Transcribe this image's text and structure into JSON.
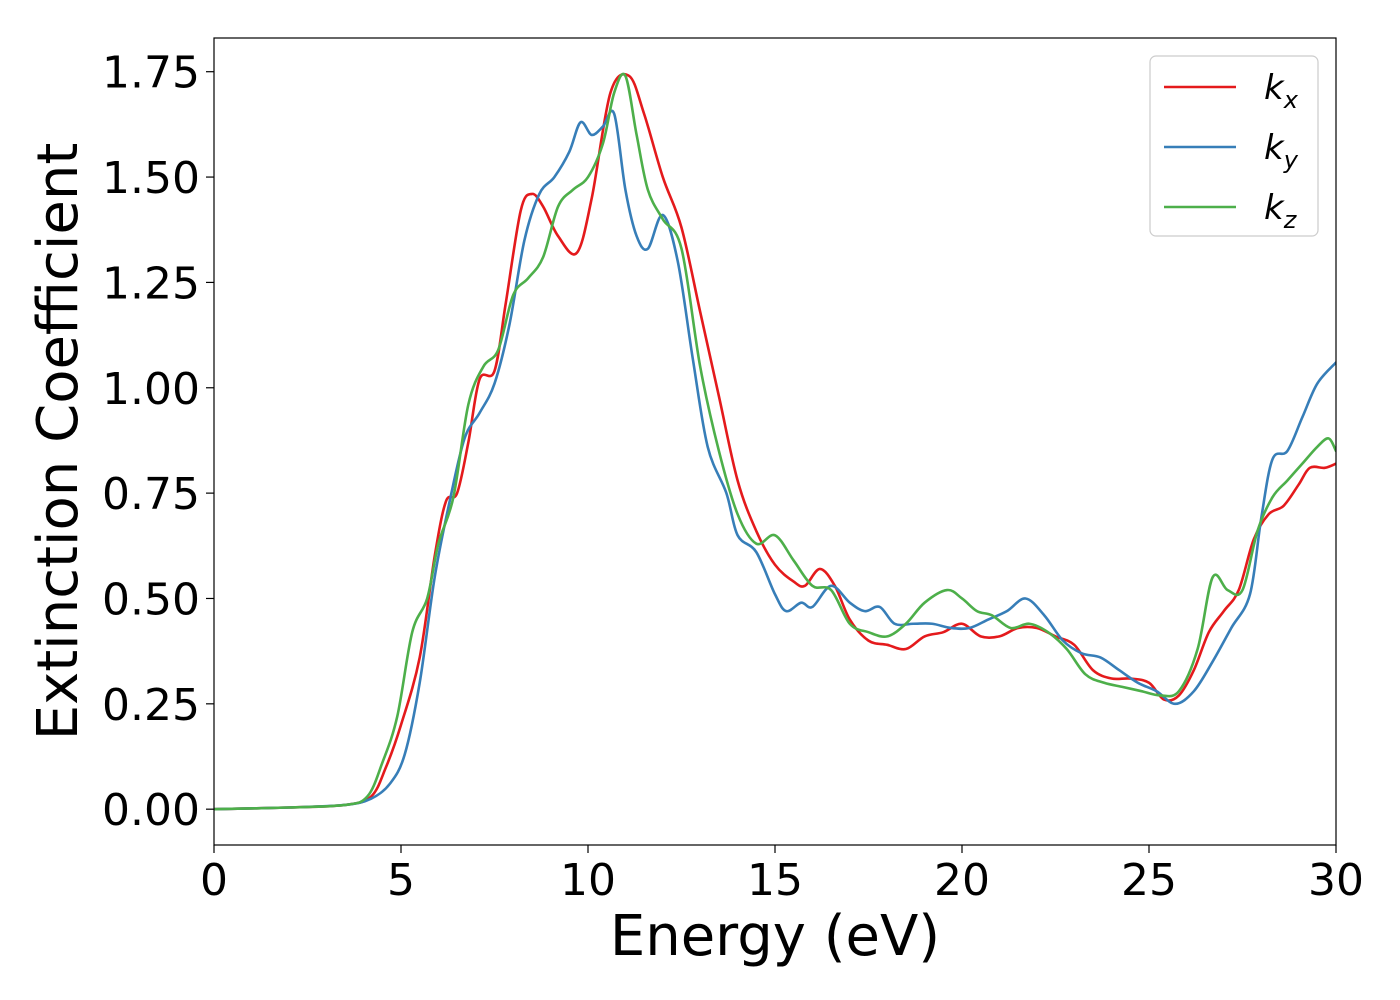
{
  "chart_data": {
    "type": "line",
    "xlabel": "Energy (eV)",
    "ylabel": "Extinction Coefficient",
    "xlim": [
      0,
      30
    ],
    "ylim": [
      -0.085,
      1.83
    ],
    "xticks": [
      0,
      5,
      10,
      15,
      20,
      25,
      30
    ],
    "xtick_labels": [
      "0",
      "5",
      "10",
      "15",
      "20",
      "25",
      "30"
    ],
    "yticks": [
      0.0,
      0.25,
      0.5,
      0.75,
      1.0,
      1.25,
      1.5,
      1.75
    ],
    "ytick_labels": [
      "0.00",
      "0.25",
      "0.50",
      "0.75",
      "1.00",
      "1.25",
      "1.50",
      "1.75"
    ],
    "grid": false,
    "legend_position": "top-right",
    "series": [
      {
        "name": "k_x",
        "label_base": "k",
        "label_sub": "x",
        "color": "#e41a1c",
        "points": [
          [
            0,
            0
          ],
          [
            2,
            0.004
          ],
          [
            3.5,
            0.01
          ],
          [
            4.2,
            0.03
          ],
          [
            4.6,
            0.1
          ],
          [
            5,
            0.2
          ],
          [
            5.5,
            0.36
          ],
          [
            5.9,
            0.6
          ],
          [
            6.2,
            0.73
          ],
          [
            6.5,
            0.75
          ],
          [
            6.8,
            0.87
          ],
          [
            7.1,
            1.02
          ],
          [
            7.5,
            1.04
          ],
          [
            7.8,
            1.2
          ],
          [
            8.2,
            1.42
          ],
          [
            8.5,
            1.46
          ],
          [
            8.8,
            1.43
          ],
          [
            9.2,
            1.36
          ],
          [
            9.7,
            1.32
          ],
          [
            10.1,
            1.45
          ],
          [
            10.6,
            1.7
          ],
          [
            11.1,
            1.74
          ],
          [
            11.5,
            1.65
          ],
          [
            12,
            1.5
          ],
          [
            12.5,
            1.38
          ],
          [
            13,
            1.18
          ],
          [
            13.5,
            0.98
          ],
          [
            14,
            0.78
          ],
          [
            14.5,
            0.66
          ],
          [
            15,
            0.58
          ],
          [
            15.5,
            0.54
          ],
          [
            15.8,
            0.53
          ],
          [
            16.2,
            0.57
          ],
          [
            16.6,
            0.53
          ],
          [
            17,
            0.45
          ],
          [
            17.5,
            0.4
          ],
          [
            18,
            0.39
          ],
          [
            18.5,
            0.38
          ],
          [
            19,
            0.41
          ],
          [
            19.5,
            0.42
          ],
          [
            20,
            0.44
          ],
          [
            20.5,
            0.41
          ],
          [
            21,
            0.41
          ],
          [
            21.5,
            0.43
          ],
          [
            22,
            0.43
          ],
          [
            22.5,
            0.41
          ],
          [
            23,
            0.39
          ],
          [
            23.5,
            0.33
          ],
          [
            24,
            0.31
          ],
          [
            24.5,
            0.31
          ],
          [
            25,
            0.3
          ],
          [
            25.4,
            0.26
          ],
          [
            25.8,
            0.27
          ],
          [
            26.2,
            0.33
          ],
          [
            26.6,
            0.42
          ],
          [
            27,
            0.47
          ],
          [
            27.4,
            0.52
          ],
          [
            27.8,
            0.64
          ],
          [
            28.2,
            0.7
          ],
          [
            28.6,
            0.72
          ],
          [
            29,
            0.77
          ],
          [
            29.3,
            0.81
          ],
          [
            29.7,
            0.81
          ],
          [
            30,
            0.82
          ]
        ]
      },
      {
        "name": "k_y",
        "label_base": "k",
        "label_sub": "y",
        "color": "#377eb8",
        "points": [
          [
            0,
            0
          ],
          [
            2,
            0.004
          ],
          [
            3.5,
            0.01
          ],
          [
            4.2,
            0.025
          ],
          [
            4.7,
            0.06
          ],
          [
            5.1,
            0.13
          ],
          [
            5.5,
            0.3
          ],
          [
            5.9,
            0.55
          ],
          [
            6.3,
            0.73
          ],
          [
            6.7,
            0.88
          ],
          [
            7.1,
            0.94
          ],
          [
            7.5,
            1.01
          ],
          [
            7.9,
            1.15
          ],
          [
            8.3,
            1.35
          ],
          [
            8.7,
            1.46
          ],
          [
            9.1,
            1.5
          ],
          [
            9.5,
            1.56
          ],
          [
            9.8,
            1.63
          ],
          [
            10.1,
            1.6
          ],
          [
            10.4,
            1.62
          ],
          [
            10.7,
            1.65
          ],
          [
            11,
            1.47
          ],
          [
            11.3,
            1.36
          ],
          [
            11.6,
            1.33
          ],
          [
            12,
            1.41
          ],
          [
            12.4,
            1.3
          ],
          [
            12.8,
            1.07
          ],
          [
            13.2,
            0.86
          ],
          [
            13.7,
            0.75
          ],
          [
            14,
            0.65
          ],
          [
            14.5,
            0.61
          ],
          [
            15,
            0.51
          ],
          [
            15.3,
            0.47
          ],
          [
            15.7,
            0.49
          ],
          [
            16,
            0.48
          ],
          [
            16.5,
            0.53
          ],
          [
            17,
            0.49
          ],
          [
            17.4,
            0.47
          ],
          [
            17.8,
            0.48
          ],
          [
            18.2,
            0.44
          ],
          [
            18.7,
            0.44
          ],
          [
            19.2,
            0.44
          ],
          [
            19.7,
            0.43
          ],
          [
            20.2,
            0.43
          ],
          [
            20.7,
            0.45
          ],
          [
            21.2,
            0.47
          ],
          [
            21.7,
            0.5
          ],
          [
            22.2,
            0.46
          ],
          [
            22.7,
            0.4
          ],
          [
            23.2,
            0.37
          ],
          [
            23.7,
            0.36
          ],
          [
            24.2,
            0.33
          ],
          [
            24.7,
            0.3
          ],
          [
            25.2,
            0.28
          ],
          [
            25.7,
            0.25
          ],
          [
            26.2,
            0.28
          ],
          [
            26.7,
            0.35
          ],
          [
            27.2,
            0.43
          ],
          [
            27.7,
            0.51
          ],
          [
            28,
            0.69
          ],
          [
            28.3,
            0.83
          ],
          [
            28.7,
            0.85
          ],
          [
            29.1,
            0.93
          ],
          [
            29.5,
            1.01
          ],
          [
            30,
            1.06
          ]
        ]
      },
      {
        "name": "k_z",
        "label_base": "k",
        "label_sub": "z",
        "color": "#4daf4a",
        "points": [
          [
            0,
            0
          ],
          [
            2,
            0.004
          ],
          [
            3.5,
            0.01
          ],
          [
            4.1,
            0.03
          ],
          [
            4.5,
            0.11
          ],
          [
            4.9,
            0.22
          ],
          [
            5.3,
            0.42
          ],
          [
            5.7,
            0.5
          ],
          [
            6,
            0.63
          ],
          [
            6.4,
            0.74
          ],
          [
            6.8,
            0.96
          ],
          [
            7.2,
            1.05
          ],
          [
            7.6,
            1.09
          ],
          [
            8,
            1.22
          ],
          [
            8.4,
            1.26
          ],
          [
            8.8,
            1.31
          ],
          [
            9.2,
            1.43
          ],
          [
            9.6,
            1.47
          ],
          [
            10,
            1.5
          ],
          [
            10.4,
            1.58
          ],
          [
            10.7,
            1.7
          ],
          [
            11,
            1.74
          ],
          [
            11.3,
            1.6
          ],
          [
            11.6,
            1.47
          ],
          [
            12,
            1.4
          ],
          [
            12.5,
            1.33
          ],
          [
            13,
            1.05
          ],
          [
            13.5,
            0.85
          ],
          [
            14,
            0.7
          ],
          [
            14.5,
            0.63
          ],
          [
            15,
            0.65
          ],
          [
            15.5,
            0.59
          ],
          [
            16,
            0.53
          ],
          [
            16.5,
            0.52
          ],
          [
            17,
            0.44
          ],
          [
            17.5,
            0.42
          ],
          [
            18,
            0.41
          ],
          [
            18.5,
            0.44
          ],
          [
            19,
            0.49
          ],
          [
            19.6,
            0.52
          ],
          [
            20,
            0.5
          ],
          [
            20.4,
            0.47
          ],
          [
            20.8,
            0.46
          ],
          [
            21.3,
            0.43
          ],
          [
            21.8,
            0.44
          ],
          [
            22.3,
            0.42
          ],
          [
            22.8,
            0.38
          ],
          [
            23.3,
            0.32
          ],
          [
            23.8,
            0.3
          ],
          [
            24.3,
            0.29
          ],
          [
            24.8,
            0.28
          ],
          [
            25.3,
            0.27
          ],
          [
            25.8,
            0.28
          ],
          [
            26.3,
            0.38
          ],
          [
            26.7,
            0.55
          ],
          [
            27.1,
            0.52
          ],
          [
            27.5,
            0.52
          ],
          [
            27.9,
            0.66
          ],
          [
            28.3,
            0.74
          ],
          [
            28.7,
            0.78
          ],
          [
            29.1,
            0.82
          ],
          [
            29.5,
            0.86
          ],
          [
            29.8,
            0.88
          ],
          [
            30,
            0.85
          ]
        ]
      }
    ]
  }
}
